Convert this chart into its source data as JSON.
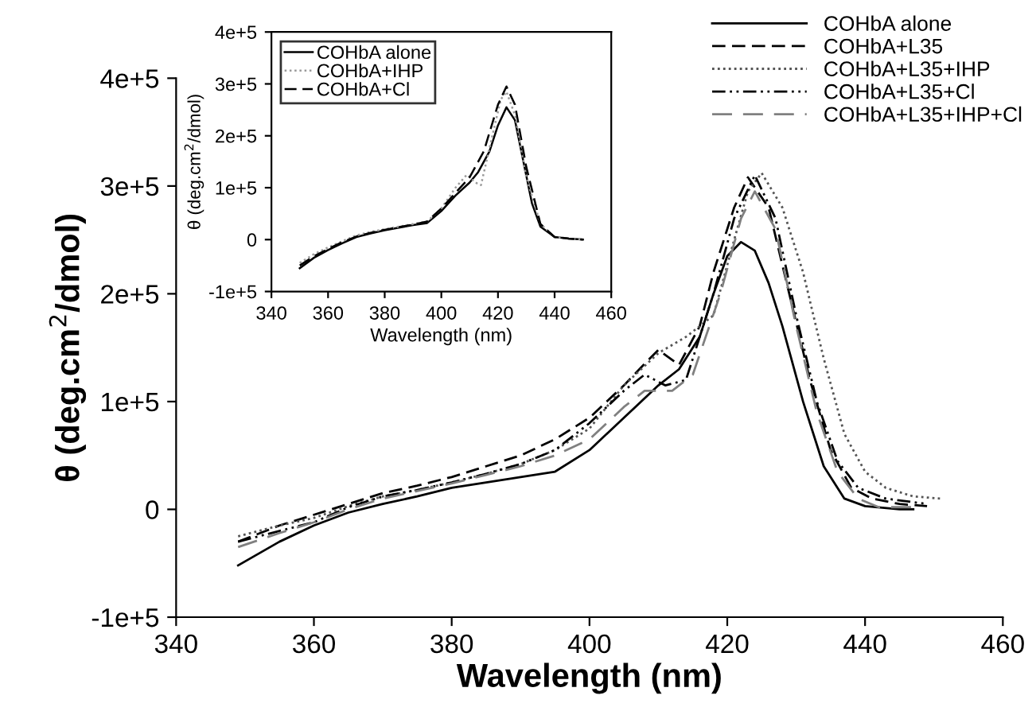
{
  "chart_data": [
    {
      "type": "line",
      "xlabel": "Wavelength (nm)",
      "ylabel": "θ (deg.cm$^{2}$/dmol)",
      "xlim": [
        340,
        460
      ],
      "ylim": [
        -100000,
        400000
      ],
      "xticks": [
        340,
        360,
        380,
        400,
        420,
        440,
        460
      ],
      "yticks": [
        {
          "value": -100000,
          "label": "-1e+5"
        },
        0,
        {
          "value": 100000,
          "label": "1e+5"
        },
        {
          "value": 200000,
          "label": "2e+5"
        },
        {
          "value": 300000,
          "label": "3e+5"
        },
        {
          "value": 400000,
          "label": "4e+5"
        }
      ],
      "grid": false,
      "legend": "top right",
      "marker": "none",
      "series": [
        {
          "name": "COHbA alone",
          "color": "#000000",
          "line_style": "solid",
          "x": [
            349,
            355,
            360,
            365,
            370,
            375,
            380,
            385,
            390,
            395,
            400,
            405,
            410,
            413,
            416,
            418,
            420,
            422,
            424,
            426,
            428,
            431,
            434,
            437,
            440,
            445,
            447
          ],
          "values": [
            -52000,
            -30000,
            -15000,
            -3000,
            5000,
            12000,
            20000,
            25000,
            30000,
            35000,
            55000,
            85000,
            115000,
            130000,
            160000,
            200000,
            235000,
            248000,
            240000,
            210000,
            170000,
            100000,
            40000,
            10000,
            3000,
            0,
            0
          ]
        },
        {
          "name": "COHbA+L35",
          "color": "#000000",
          "line_style": "dashed",
          "x": [
            349,
            355,
            360,
            365,
            370,
            375,
            380,
            385,
            390,
            395,
            400,
            405,
            408,
            410,
            413,
            416,
            418,
            421,
            423,
            426,
            429,
            432,
            435,
            438,
            441,
            445,
            449
          ],
          "values": [
            -30000,
            -15000,
            -5000,
            5000,
            15000,
            22000,
            30000,
            40000,
            50000,
            65000,
            85000,
            115000,
            135000,
            148000,
            134000,
            170000,
            220000,
            280000,
            308000,
            280000,
            200000,
            120000,
            55000,
            20000,
            10000,
            5000,
            3000
          ]
        },
        {
          "name": "COHbA+L35+IHP",
          "color": "#555555",
          "line_style": "dotted",
          "x": [
            349,
            355,
            360,
            365,
            370,
            375,
            380,
            385,
            390,
            395,
            400,
            405,
            410,
            414,
            418,
            421,
            423,
            425,
            428,
            431,
            434,
            437,
            440,
            443,
            447,
            451
          ],
          "values": [
            -25000,
            -15000,
            -8000,
            3000,
            12000,
            18000,
            25000,
            33000,
            42000,
            55000,
            75000,
            115000,
            145000,
            160000,
            180000,
            250000,
            295000,
            312000,
            280000,
            220000,
            140000,
            70000,
            35000,
            20000,
            12000,
            10000
          ]
        },
        {
          "name": "COHbA+L35+Cl",
          "color": "#000000",
          "line_style": "dashdot",
          "x": [
            349,
            355,
            360,
            365,
            370,
            375,
            380,
            385,
            390,
            395,
            400,
            405,
            408,
            411,
            414,
            418,
            421,
            424,
            427,
            430,
            433,
            436,
            439,
            443,
            449
          ],
          "values": [
            -30000,
            -20000,
            -12000,
            2000,
            12000,
            18000,
            25000,
            33000,
            42000,
            55000,
            80000,
            110000,
            125000,
            115000,
            120000,
            200000,
            270000,
            310000,
            270000,
            180000,
            100000,
            45000,
            20000,
            10000,
            5000
          ]
        },
        {
          "name": "COHbA+L35+IHP+Cl",
          "color": "#808080",
          "line_style": "longdash",
          "x": [
            349,
            355,
            360,
            365,
            370,
            375,
            380,
            385,
            390,
            395,
            400,
            405,
            408,
            412,
            415,
            419,
            422,
            424,
            427,
            430,
            433,
            436,
            439,
            442,
            448
          ],
          "values": [
            -35000,
            -22000,
            -12000,
            0,
            10000,
            17000,
            24000,
            32000,
            40000,
            50000,
            65000,
            95000,
            110000,
            110000,
            125000,
            200000,
            270000,
            295000,
            260000,
            170000,
            90000,
            35000,
            10000,
            2000,
            2000
          ]
        }
      ]
    },
    {
      "type": "line",
      "xlabel": "Wavelength (nm)",
      "ylabel": "θ (deg.cm$^{2}$/dmol)",
      "xlim": [
        340,
        460
      ],
      "ylim": [
        -100000,
        400000
      ],
      "xticks": [
        340,
        360,
        380,
        400,
        420,
        440,
        460
      ],
      "yticks": [
        {
          "value": -100000,
          "label": "-1e+5"
        },
        0,
        {
          "value": 100000,
          "label": "1e+5"
        },
        {
          "value": 200000,
          "label": "2e+5"
        },
        {
          "value": 300000,
          "label": "3e+5"
        },
        {
          "value": 400000,
          "label": "4e+5"
        }
      ],
      "grid": false,
      "legend": "top left",
      "marker": "none",
      "series": [
        {
          "name": "COHbA alone",
          "color": "#000000",
          "line_style": "solid",
          "x": [
            350,
            355,
            360,
            365,
            370,
            375,
            380,
            385,
            390,
            395,
            400,
            405,
            410,
            413,
            417,
            420,
            423,
            426,
            429,
            432,
            435,
            440,
            445,
            450
          ],
          "values": [
            -55000,
            -35000,
            -20000,
            -7000,
            5000,
            12000,
            18000,
            23000,
            28000,
            32000,
            55000,
            85000,
            110000,
            130000,
            170000,
            220000,
            255000,
            230000,
            150000,
            70000,
            25000,
            5000,
            2000,
            0
          ]
        },
        {
          "name": "COHbA+IHP",
          "color": "#999999",
          "line_style": "dotted",
          "x": [
            350,
            355,
            360,
            365,
            370,
            375,
            380,
            385,
            390,
            395,
            400,
            405,
            409,
            412,
            414,
            418,
            421,
            423,
            426,
            430,
            435,
            440,
            445,
            450
          ],
          "values": [
            -45000,
            -28000,
            -15000,
            -3000,
            8000,
            15000,
            20000,
            25000,
            30000,
            35000,
            60000,
            100000,
            125000,
            110000,
            105000,
            200000,
            270000,
            285000,
            240000,
            120000,
            30000,
            5000,
            2000,
            0
          ]
        },
        {
          "name": "COHbA+Cl",
          "color": "#000000",
          "line_style": "dashed",
          "x": [
            350,
            355,
            360,
            365,
            370,
            375,
            380,
            385,
            390,
            395,
            400,
            405,
            410,
            415,
            420,
            423,
            426,
            430,
            435,
            440,
            445,
            450
          ],
          "values": [
            -50000,
            -32000,
            -18000,
            -5000,
            6000,
            13000,
            19000,
            24000,
            29000,
            35000,
            60000,
            90000,
            120000,
            170000,
            260000,
            295000,
            260000,
            140000,
            30000,
            5000,
            2000,
            0
          ]
        }
      ]
    }
  ]
}
